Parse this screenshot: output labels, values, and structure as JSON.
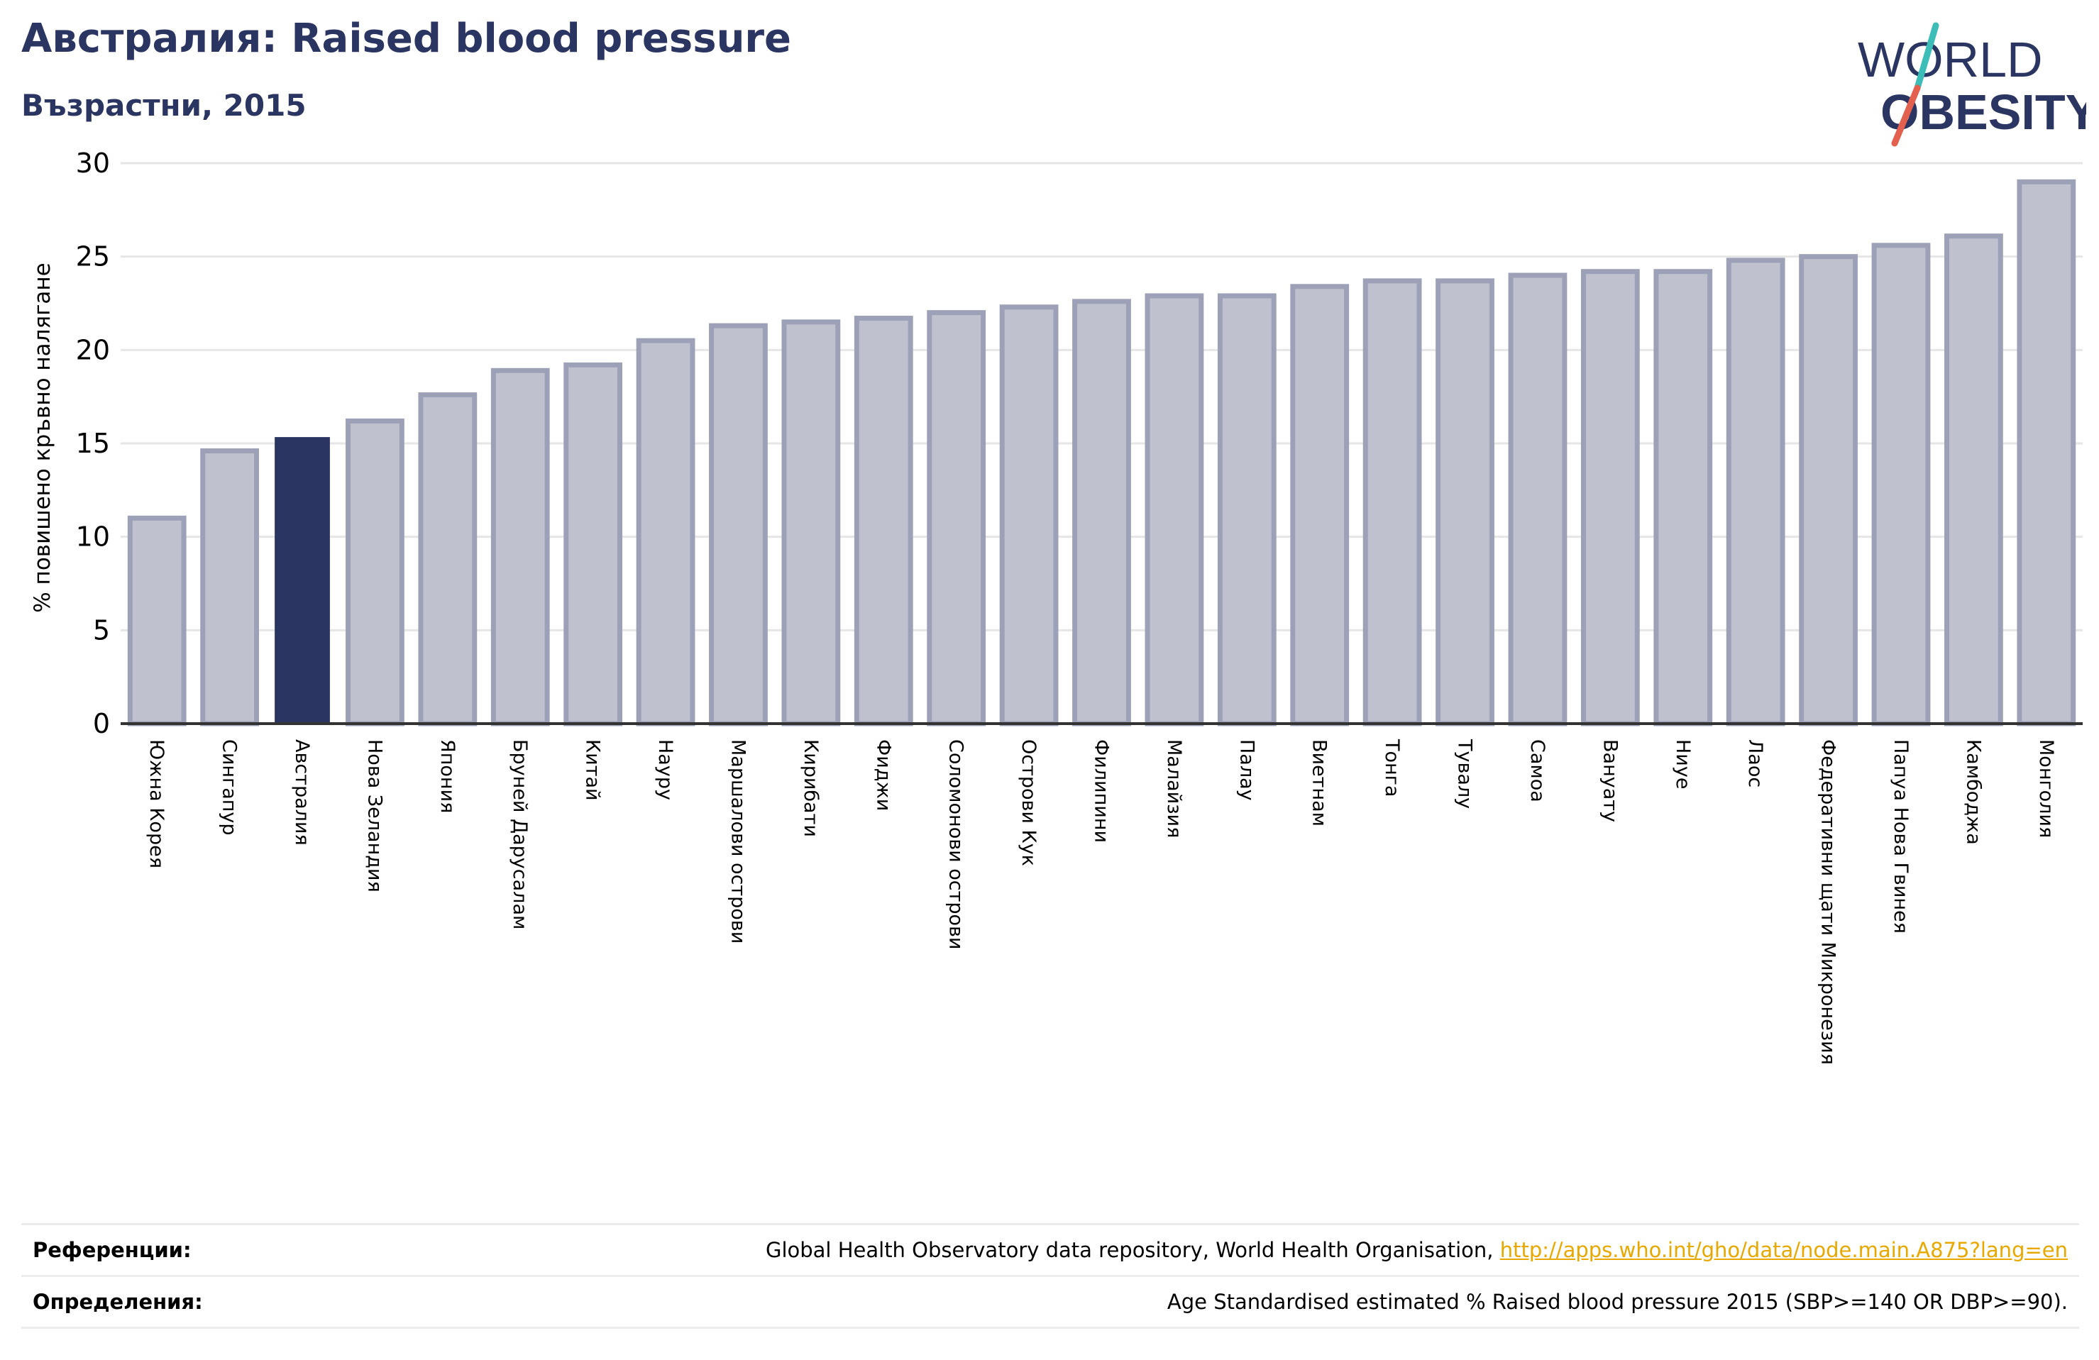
{
  "header": {
    "title": "Австралия: Raised blood pressure",
    "subtitle": "Възрастни, 2015"
  },
  "logo": {
    "line1": "WORLD",
    "line2": "OBESITY",
    "colors": {
      "text": "#2b3561",
      "slash_teal": "#3dbdb7",
      "slash_red": "#e4604e"
    }
  },
  "chart_data": {
    "type": "bar",
    "title": "Австралия: Raised blood pressure",
    "subtitle": "Възрастни, 2015",
    "ylabel": "% повишено кръвно налягане",
    "xlabel": "",
    "ylim": [
      0,
      30
    ],
    "yticks": [
      0,
      5,
      10,
      15,
      20,
      25,
      30
    ],
    "grid": true,
    "highlight": "Австралия",
    "colors": {
      "bar": "#bfc1cf",
      "bar_edge": "#9ca1b8",
      "highlight": "#2b3561"
    },
    "categories": [
      "Южна Корея",
      "Сингапур",
      "Австралия",
      "Нова Зеландия",
      "Япония",
      "Бруней Дарусалам",
      "Китай",
      "Науру",
      "Маршалови острови",
      "Кирибати",
      "Фиджи",
      "Соломонови острови",
      "Острови Кук",
      "Филипини",
      "Малайзия",
      "Палау",
      "Виетнам",
      "Тонга",
      "Тувалу",
      "Самоа",
      "Вануату",
      "Ниуе",
      "Лаос",
      "Федеративни щати Микронезия",
      "Папуа Нова Гвинея",
      "Камбоджа",
      "Монголия"
    ],
    "values": [
      11.0,
      14.6,
      15.3,
      16.2,
      17.6,
      18.9,
      19.2,
      20.5,
      21.3,
      21.5,
      21.7,
      22.0,
      22.3,
      22.6,
      22.9,
      22.9,
      23.4,
      23.7,
      23.7,
      24.0,
      24.2,
      24.2,
      24.8,
      25.0,
      25.6,
      26.1,
      29.0
    ]
  },
  "footer": {
    "references_label": "Референции:",
    "references_text": "Global Health Observatory data repository, World Health Organisation, ",
    "references_link": "http://apps.who.int/gho/data/node.main.A875?lang=en",
    "definitions_label": "Определения:",
    "definitions_text": "Age Standardised estimated % Raised blood pressure 2015 (SBP>=140 OR DBP>=90)."
  }
}
